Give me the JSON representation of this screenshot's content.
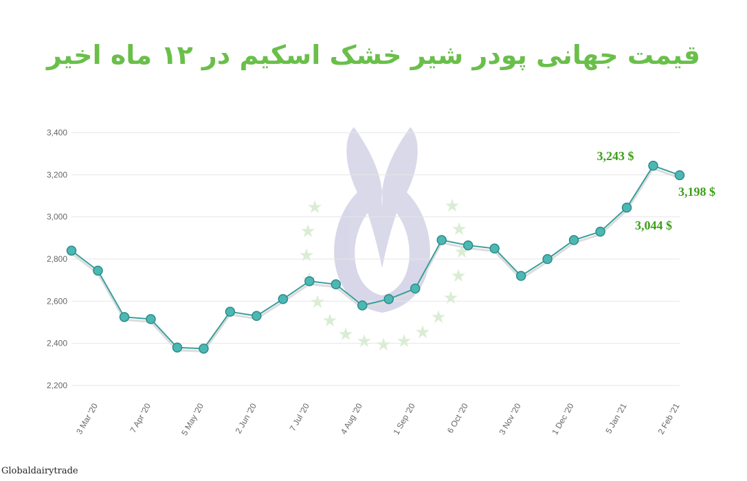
{
  "chart_data": {
    "type": "line",
    "title": "قیمت جهانی پودر شیر خشک اسکیم در ۱۲ ماه اخیر",
    "xlabel": "",
    "ylabel": "",
    "ylim": [
      2200,
      3400
    ],
    "yticks": [
      2200,
      2400,
      2600,
      2800,
      3000,
      3200,
      3400
    ],
    "ytick_labels": [
      "2,200",
      "2,400",
      "2,600",
      "2,800",
      "3,000",
      "3,200",
      "3,400"
    ],
    "grid": true,
    "legend": "none",
    "xtick_labels": [
      {
        "index": 1,
        "label": "3 Mar '20"
      },
      {
        "index": 3,
        "label": "7 Apr '20"
      },
      {
        "index": 5,
        "label": "5 May '20"
      },
      {
        "index": 7,
        "label": "2 Jun '20"
      },
      {
        "index": 9,
        "label": "7 Jul '20"
      },
      {
        "index": 11,
        "label": "4 Aug '20"
      },
      {
        "index": 13,
        "label": "1 Sep '20"
      },
      {
        "index": 15,
        "label": "6 Oct '20"
      },
      {
        "index": 17,
        "label": "3 Nov '20"
      },
      {
        "index": 19,
        "label": "1 Dec '20"
      },
      {
        "index": 21,
        "label": "5 Jan '21"
      },
      {
        "index": 23,
        "label": "2 Feb '21"
      }
    ],
    "series": [
      {
        "values": [
          2840,
          2745,
          2525,
          2515,
          2380,
          2375,
          2550,
          2530,
          2610,
          2695,
          2680,
          2580,
          2610,
          2660,
          2890,
          2865,
          2850,
          2720,
          2800,
          2890,
          2930,
          3044,
          3243,
          3198
        ]
      }
    ],
    "annotations": [
      {
        "index": 22,
        "text": "3,243 $"
      },
      {
        "index": 23,
        "text": "3,198 $"
      },
      {
        "index": 21,
        "text": "3,044 $"
      }
    ],
    "colors": {
      "line": "#3a9e9c",
      "marker": "#4cb8b4",
      "marker_edge": "#2e8a88",
      "grid": "#e6e6e6",
      "annotation": "#3aa017",
      "title": "#6abf4b"
    }
  },
  "source": "Globaldairytrade"
}
